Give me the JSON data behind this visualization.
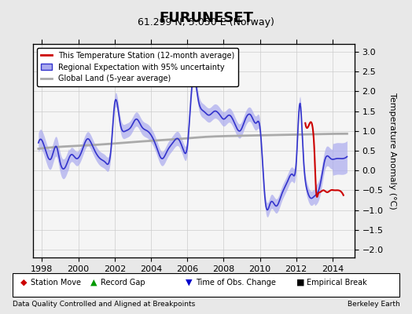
{
  "title": "FURUNESET",
  "subtitle": "61.299 N, 5.050 E (Norway)",
  "ylabel": "Temperature Anomaly (°C)",
  "xlabel_footer": "Data Quality Controlled and Aligned at Breakpoints",
  "footer_right": "Berkeley Earth",
  "ylim": [
    -2.2,
    3.2
  ],
  "xlim_start": 1997.5,
  "xlim_end": 2015.2,
  "xticks": [
    1998,
    2000,
    2002,
    2004,
    2006,
    2008,
    2010,
    2012,
    2014
  ],
  "yticks": [
    -2,
    -1.5,
    -1,
    -0.5,
    0,
    0.5,
    1,
    1.5,
    2,
    2.5,
    3
  ],
  "bg_color": "#e8e8e8",
  "plot_bg_color": "#f5f5f5",
  "regional_color": "#3333cc",
  "regional_shade_color": "#aaaaee",
  "station_color": "#cc0000",
  "global_color": "#aaaaaa",
  "legend_entries": [
    "This Temperature Station (12-month average)",
    "Regional Expectation with 95% uncertainty",
    "Global Land (5-year average)"
  ],
  "bottom_legend": [
    {
      "label": "Station Move",
      "color": "#cc0000",
      "marker": "D"
    },
    {
      "label": "Record Gap",
      "color": "#009900",
      "marker": "^"
    },
    {
      "label": "Time of Obs. Change",
      "color": "#0000cc",
      "marker": "v"
    },
    {
      "label": "Empirical Break",
      "color": "#000000",
      "marker": "s"
    }
  ]
}
